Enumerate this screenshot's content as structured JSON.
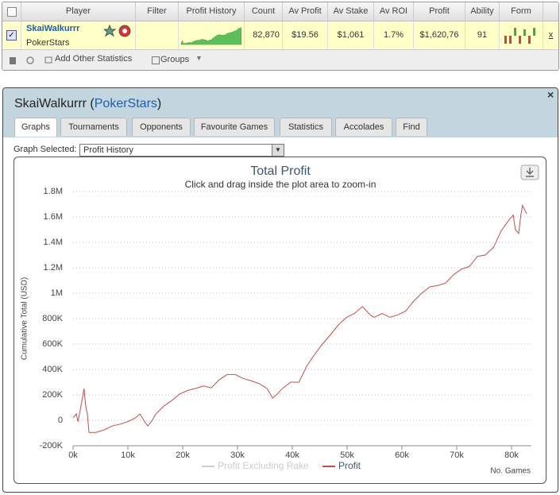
{
  "table": {
    "header": [
      "Player",
      "Filter",
      "Profit History",
      "Count",
      "Av Profit",
      "Av Stake",
      "Av ROI",
      "Profit",
      "Ability",
      "Form"
    ],
    "row": {
      "player": "SkaiWalkurrr",
      "site": "PokerStars",
      "count": "82,870",
      "av_profit": "$19.56",
      "av_stake": "$1,061",
      "av_roi": "1.7%",
      "profit": "$1,620,76",
      "ability": "91",
      "remove": "x"
    },
    "toolbar": [
      "Add Other Statistics",
      "Groups"
    ]
  },
  "panel": {
    "heading": [
      "SkaiWalkurrr",
      " (",
      "PokerStars",
      ")"
    ],
    "close": "×",
    "tabs": [
      "Graphs",
      "Tournaments",
      "Opponents",
      "Favourite Games",
      "Statistics",
      "Accolades",
      "Find"
    ],
    "graph_selected_label": "Graph Selected:",
    "graph_selected": "Profit History"
  },
  "chart_data": {
    "type": "line",
    "title": "Total Profit",
    "subtitle": "Click and drag inside the plot area to zoom-in",
    "y_label": "Cumulative Total (USD)",
    "x_label": "No. Games",
    "x": [
      0,
      600,
      900,
      1300,
      1700,
      2000,
      2300,
      2600,
      2900,
      4200,
      5700,
      7100,
      8600,
      10000,
      11400,
      12200,
      12900,
      13600,
      14300,
      15100,
      16500,
      18000,
      19400,
      20900,
      22300,
      23800,
      25200,
      26700,
      28100,
      29600,
      31000,
      32500,
      33900,
      35400,
      36400,
      37200,
      38300,
      39700,
      41200,
      41900,
      42600,
      44100,
      45500,
      47000,
      48400,
      49900,
      51300,
      52800,
      54200,
      54900,
      56400,
      57800,
      59300,
      60700,
      62200,
      63600,
      65100,
      66500,
      68000,
      69400,
      70900,
      72300,
      73800,
      75200,
      76700,
      78100,
      79600,
      80300,
      80700,
      81300,
      81700,
      82000,
      82500,
      82800
    ],
    "series": [
      {
        "name": "Profit Excluding Rake",
        "color": "#cccccc",
        "visible": false
      },
      {
        "name": "Profit",
        "color": "#c0504d",
        "visible": true,
        "values": [
          20000,
          50000,
          -10000,
          80000,
          175000,
          250000,
          110000,
          50000,
          -95000,
          -95000,
          -75000,
          -45000,
          -30000,
          -10000,
          20000,
          50000,
          0,
          -45000,
          -10000,
          50000,
          110000,
          155000,
          205000,
          235000,
          250000,
          270000,
          255000,
          320000,
          360000,
          360000,
          330000,
          310000,
          290000,
          250000,
          175000,
          205000,
          255000,
          300000,
          300000,
          360000,
          425000,
          520000,
          600000,
          675000,
          750000,
          810000,
          840000,
          895000,
          830000,
          810000,
          840000,
          810000,
          830000,
          860000,
          940000,
          1000000,
          1050000,
          1060000,
          1080000,
          1145000,
          1190000,
          1210000,
          1290000,
          1300000,
          1360000,
          1490000,
          1580000,
          1615000,
          1500000,
          1470000,
          1615000,
          1690000,
          1645000,
          1625000
        ]
      }
    ],
    "xlim": [
      0,
      83000
    ],
    "ylim": [
      -200000,
      1800000
    ],
    "xticks": [
      {
        "value": 0,
        "label": "0k"
      },
      {
        "value": 10000,
        "label": "10k"
      },
      {
        "value": 20000,
        "label": "20k"
      },
      {
        "value": 30000,
        "label": "30k"
      },
      {
        "value": 40000,
        "label": "40k"
      },
      {
        "value": 50000,
        "label": "50k"
      },
      {
        "value": 60000,
        "label": "60k"
      },
      {
        "value": 70000,
        "label": "70k"
      },
      {
        "value": 80000,
        "label": "80k"
      }
    ],
    "yticks": [
      {
        "value": -200000,
        "label": "-200K"
      },
      0,
      {
        "value": 200000,
        "label": "200K"
      },
      {
        "value": 400000,
        "label": "400K"
      },
      {
        "value": 600000,
        "label": "600K"
      },
      {
        "value": 800000,
        "label": "800K"
      },
      {
        "value": 1000000,
        "label": "1M"
      },
      {
        "value": 1200000,
        "label": "1.2M"
      },
      {
        "value": 1400000,
        "label": "1.4M"
      },
      {
        "value": 1600000,
        "label": "1.6M"
      },
      {
        "value": 1800000,
        "label": "1.8M"
      }
    ],
    "grid": true
  }
}
